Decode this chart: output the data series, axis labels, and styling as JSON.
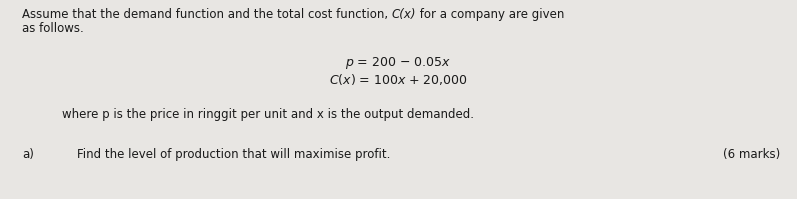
{
  "bg_color": "#e8e6e3",
  "text_color": "#1a1a1a",
  "fontsize_body": 8.5,
  "fontsize_eq": 9.0,
  "line1a": "Assume that the demand function and the total cost function, ",
  "line1b": "C(x)",
  "line1c": " for a company are given",
  "line2": "as follows.",
  "eq1": "p = 200 − 0.05x",
  "eq2": "C(x) = 100x + 20,000",
  "where_line": "where p is the price in ringgit per unit and x is the output demanded.",
  "part_a_label": "a)",
  "part_a_text": "Find the level of production that will maximise profit.",
  "marks": "(6 marks)"
}
